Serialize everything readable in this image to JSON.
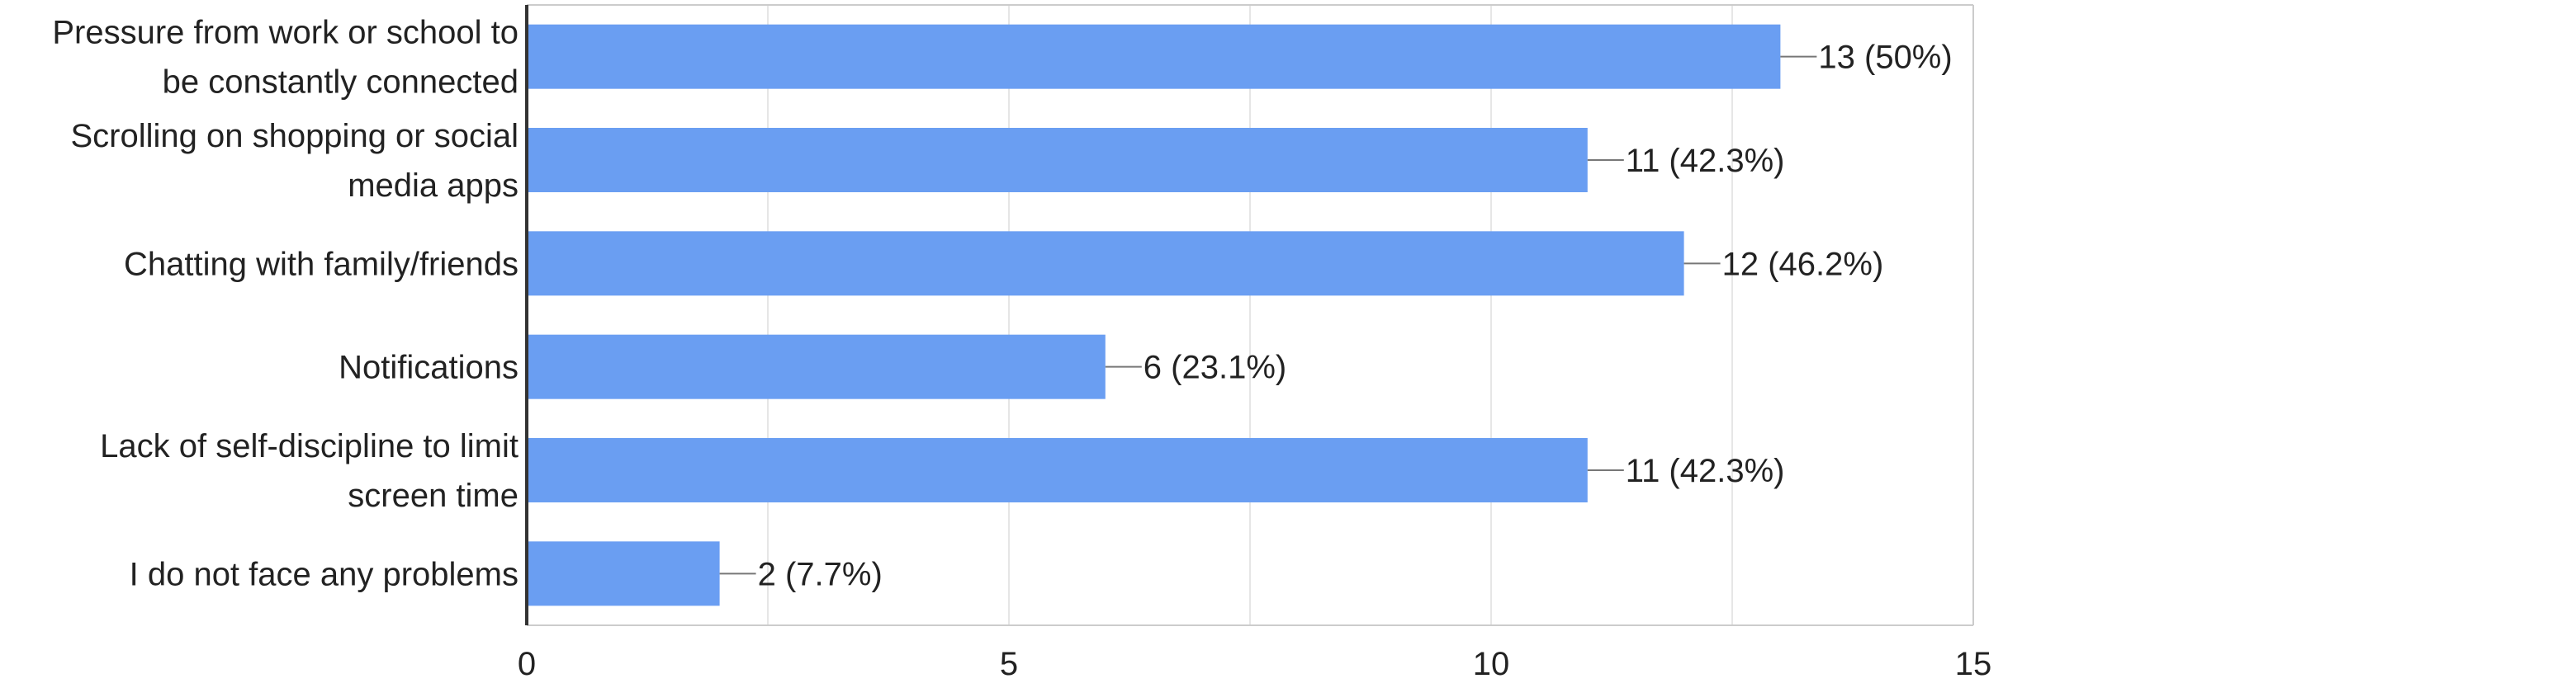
{
  "chart_data": {
    "type": "bar",
    "orientation": "horizontal",
    "title": "",
    "xlabel": "",
    "ylabel": "",
    "categories": [
      [
        "Pressure from work or school to",
        "be constantly connected"
      ],
      [
        "Scrolling on shopping or social",
        "media apps"
      ],
      [
        "Chatting with family/friends"
      ],
      [
        "Notifications"
      ],
      [
        "Lack of self-discipline to limit",
        "screen time"
      ],
      [
        "I do not face any problems"
      ]
    ],
    "values": [
      13,
      11,
      12,
      6,
      11,
      2
    ],
    "value_labels": [
      "13 (50%)",
      "11 (42.3%)",
      "12 (46.2%)",
      "6 (23.1%)",
      "11 (42.3%)",
      "2 (7.7%)"
    ],
    "xlim": [
      0,
      15
    ],
    "xticks": [
      0,
      5,
      10,
      15
    ],
    "xtick_labels": [
      "0",
      "5",
      "10",
      "15"
    ],
    "grid": "vertical",
    "legend": "none",
    "colors": {
      "bar": "#6a9ef2",
      "grid": "#e6e6e6",
      "axis": "#333333",
      "frame": "#cccccc",
      "leader": "#777777",
      "text": "#222222"
    }
  }
}
